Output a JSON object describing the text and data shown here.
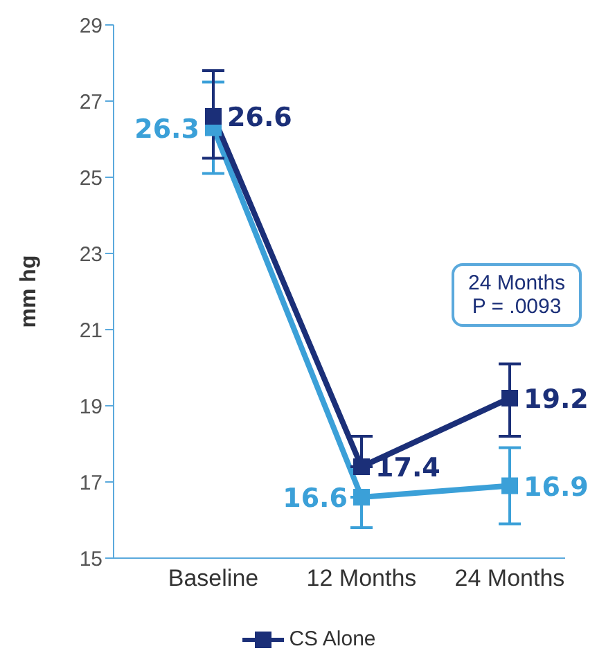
{
  "chart_data": {
    "type": "line",
    "ylabel": "mm hg",
    "categories": [
      "Baseline",
      "12 Months",
      "24 Months"
    ],
    "series": [
      {
        "color": "#3ba0d8",
        "values": [
          26.3,
          16.6,
          16.9
        ],
        "errors": [
          [
            25.1,
            27.5
          ],
          [
            15.8,
            16.6
          ],
          [
            15.9,
            17.9
          ]
        ]
      },
      {
        "name": "CS Alone",
        "color": "#1b2f78",
        "values": [
          26.6,
          17.4,
          19.2
        ],
        "errors": [
          [
            25.5,
            27.8
          ],
          [
            17.4,
            18.2
          ],
          [
            18.2,
            20.1
          ]
        ]
      }
    ],
    "ylim": [
      15,
      29
    ],
    "yticks": [
      15,
      17,
      19,
      21,
      23,
      25,
      27,
      29
    ],
    "grid": false,
    "legend": "bottom",
    "marker": "square",
    "line_style": "solid",
    "data_labels": true,
    "annotations": [
      "24 Months\nP = .0093"
    ]
  }
}
